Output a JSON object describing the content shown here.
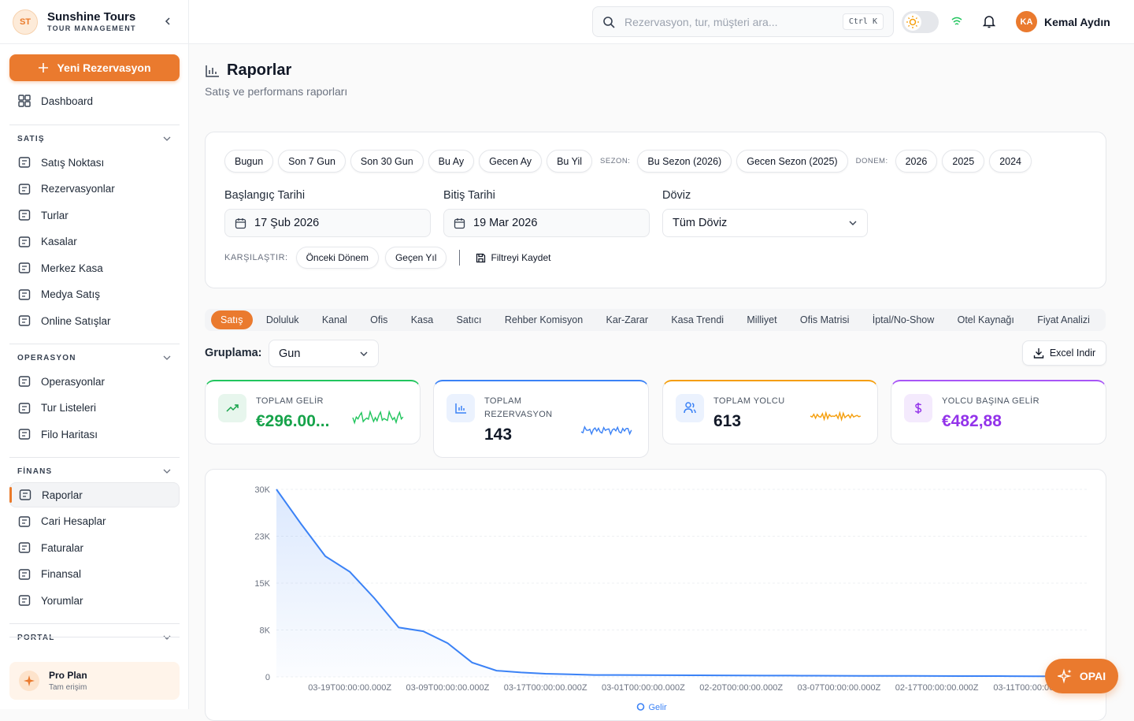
{
  "brand": {
    "initials": "ST",
    "name": "Sunshine Tours",
    "subtitle": "TOUR MANAGEMENT"
  },
  "topbar": {
    "search_placeholder": "Rezervasyon, tur, müşteri ara...",
    "shortcut": "Ctrl K",
    "user_initials": "KA",
    "user_name": "Kemal Aydın"
  },
  "sidebar": {
    "new_button": "Yeni Rezervasyon",
    "dashboard": "Dashboard",
    "sections": [
      {
        "title": "SATIŞ",
        "items": [
          "Satış Noktası",
          "Rezervasyonlar",
          "Turlar",
          "Kasalar",
          "Merkez Kasa",
          "Medya Satış",
          "Online Satışlar"
        ]
      },
      {
        "title": "OPERASYON",
        "items": [
          "Operasyonlar",
          "Tur Listeleri",
          "Filo Haritası"
        ]
      },
      {
        "title": "FİNANS",
        "items": [
          "Raporlar",
          "Cari Hesaplar",
          "Faturalar",
          "Finansal",
          "Yorumlar"
        ]
      },
      {
        "title": "PORTAL",
        "items": []
      }
    ],
    "plan": {
      "name": "Pro Plan",
      "desc": "Tam erişim"
    }
  },
  "header": {
    "title": "Raporlar",
    "subtitle": "Satış ve performans raporları"
  },
  "filters": {
    "quick": [
      "Bugun",
      "Son 7 Gun",
      "Son 30 Gun",
      "Bu Ay",
      "Gecen Ay",
      "Bu Yil"
    ],
    "season_label": "SEZON:",
    "seasons": [
      "Bu Sezon (2026)",
      "Gecen Sezon (2025)"
    ],
    "period_label": "DONEM:",
    "periods": [
      "2026",
      "2025",
      "2024"
    ],
    "start_label": "Başlangıç Tarihi",
    "start_value": "17 Şub 2026",
    "end_label": "Bitiş Tarihi",
    "end_value": "19 Mar 2026",
    "currency_label": "Döviz",
    "currency_value": "Tüm Döviz",
    "compare_label": "KARŞILAŞTIR:",
    "compare": [
      "Önceki Dönem",
      "Geçen Yıl"
    ],
    "save": "Filtreyi Kaydet"
  },
  "tabs": [
    "Satış",
    "Doluluk",
    "Kanal",
    "Ofis",
    "Kasa",
    "Satıcı",
    "Rehber Komisyon",
    "Kar-Zarar",
    "Kasa Trendi",
    "Milliyet",
    "Ofis Matrisi",
    "İptal/No-Show",
    "Otel Kaynağı",
    "Fiyat Analizi"
  ],
  "grouping": {
    "label": "Gruplama:",
    "value": "Gun"
  },
  "export": "Excel Indir",
  "kpis": [
    {
      "label": "TOPLAM GELİR",
      "value": "€296.00...",
      "color": "#22c55e",
      "value_color": "#16a34a",
      "icon_color": "#16a34a"
    },
    {
      "label": "TOPLAM REZERVASYON",
      "value": "143",
      "color": "#3b82f6",
      "value_color": "#111827",
      "icon_color": "#3b82f6"
    },
    {
      "label": "TOPLAM YOLCU",
      "value": "613",
      "color": "#f59e0b",
      "value_color": "#111827",
      "icon_color": "#3b82f6"
    },
    {
      "label": "YOLCU BAŞINA GELİR",
      "value": "€482,88",
      "color": "#a855f7",
      "value_color": "#9333ea",
      "icon_color": "#9333ea"
    }
  ],
  "fab": "OPAI",
  "chart_data": {
    "type": "line",
    "categories": [
      null,
      null,
      null,
      "03-19T00:00:00.000Z",
      null,
      null,
      null,
      "03-09T00:00:00.000Z",
      null,
      null,
      null,
      "03-17T00:00:00.000Z",
      null,
      null,
      null,
      "03-01T00:00:00.000Z",
      null,
      null,
      null,
      "02-20T00:00:00.000Z",
      null,
      null,
      null,
      "03-07T00:00:00.000Z",
      null,
      null,
      null,
      "02-17T00:00:00.000Z",
      null,
      null,
      null,
      "03-11T00:00:00.000Z",
      null,
      null
    ],
    "series": [
      {
        "name": "Gelir",
        "color": "#3b82f6",
        "values": [
          30000,
          24500,
          19300,
          16800,
          12600,
          7900,
          7300,
          5400,
          2300,
          1000,
          700,
          500,
          400,
          300,
          300,
          280,
          260,
          250,
          240,
          220,
          200,
          200,
          190,
          180,
          170,
          160,
          150,
          140,
          130,
          120,
          110,
          100,
          90,
          80
        ]
      }
    ],
    "ylim": [
      0,
      30000
    ],
    "yticks": [
      0,
      {
        "value": 7500,
        "label": "8K"
      },
      {
        "value": 15000,
        "label": "15K"
      },
      {
        "value": 22500,
        "label": "23K"
      },
      {
        "value": 30000,
        "label": "30K"
      }
    ],
    "grid": true,
    "legend": "bottom"
  }
}
